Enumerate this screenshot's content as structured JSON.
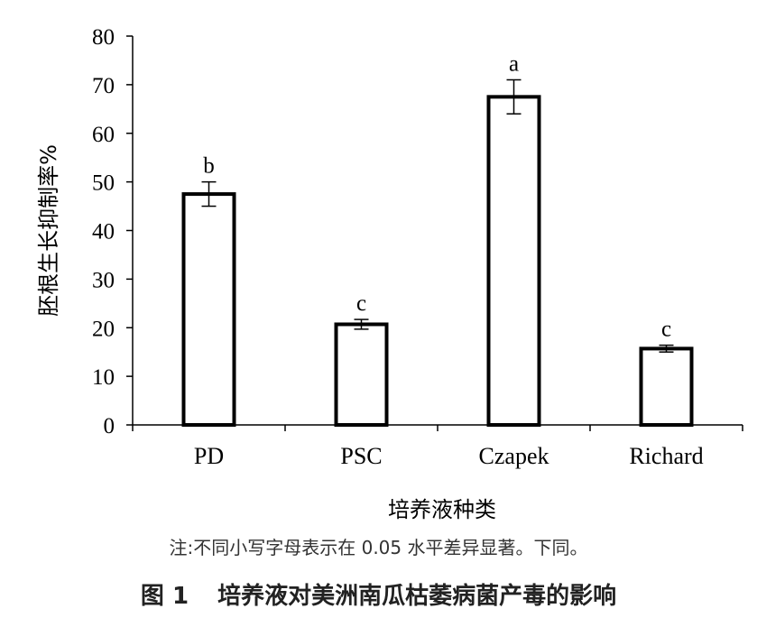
{
  "chart_data": {
    "type": "bar",
    "categories": [
      "PD",
      "PSC",
      "Czapek",
      "Richard"
    ],
    "values": [
      47.5,
      20.7,
      67.5,
      15.7
    ],
    "errors": [
      2.5,
      1.0,
      3.5,
      0.7
    ],
    "significance": [
      "b",
      "c",
      "a",
      "c"
    ],
    "ylabel": "胚根生长抑制率%",
    "xlabel": "培养液种类",
    "ylim": [
      0,
      80
    ],
    "yticks": [
      0,
      10,
      20,
      30,
      40,
      50,
      60,
      70,
      80
    ],
    "grid": false,
    "legend": "none"
  },
  "note": "注:不同小写字母表示在 0.05 水平差异显著。下同。",
  "caption": {
    "number": "图 1",
    "title": "培养液对美洲南瓜枯萎病菌产毒的影响"
  }
}
